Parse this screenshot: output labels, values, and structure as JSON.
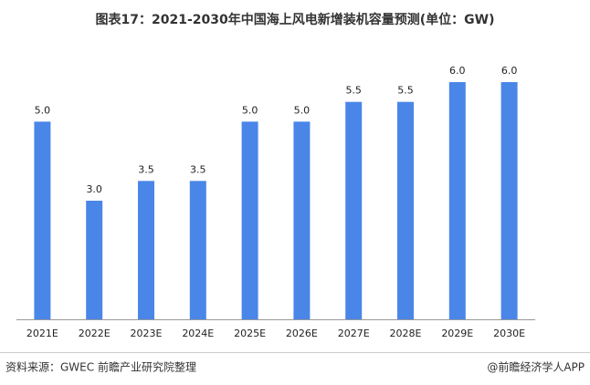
{
  "chart_data": {
    "type": "bar",
    "title": "图表17：2021-2030年中国海上风电新增装机容量预测(单位：GW)",
    "categories": [
      "2021E",
      "2022E",
      "2023E",
      "2024E",
      "2025E",
      "2026E",
      "2027E",
      "2028E",
      "2029E",
      "2030E"
    ],
    "values": [
      5,
      3,
      3.5,
      3.5,
      5,
      5,
      5.5,
      5.5,
      6,
      6
    ],
    "value_labels": [
      "5.0",
      "3.0",
      "3.5",
      "3.5",
      "5.0",
      "5.0",
      "5.5",
      "5.5",
      "6.0",
      "6.0"
    ],
    "color": "#4a86e8",
    "ylim": [
      0,
      6
    ],
    "source": "资料来源：GWEC 前瞻产业研究院整理",
    "note": "@前瞻经济学人APP"
  }
}
